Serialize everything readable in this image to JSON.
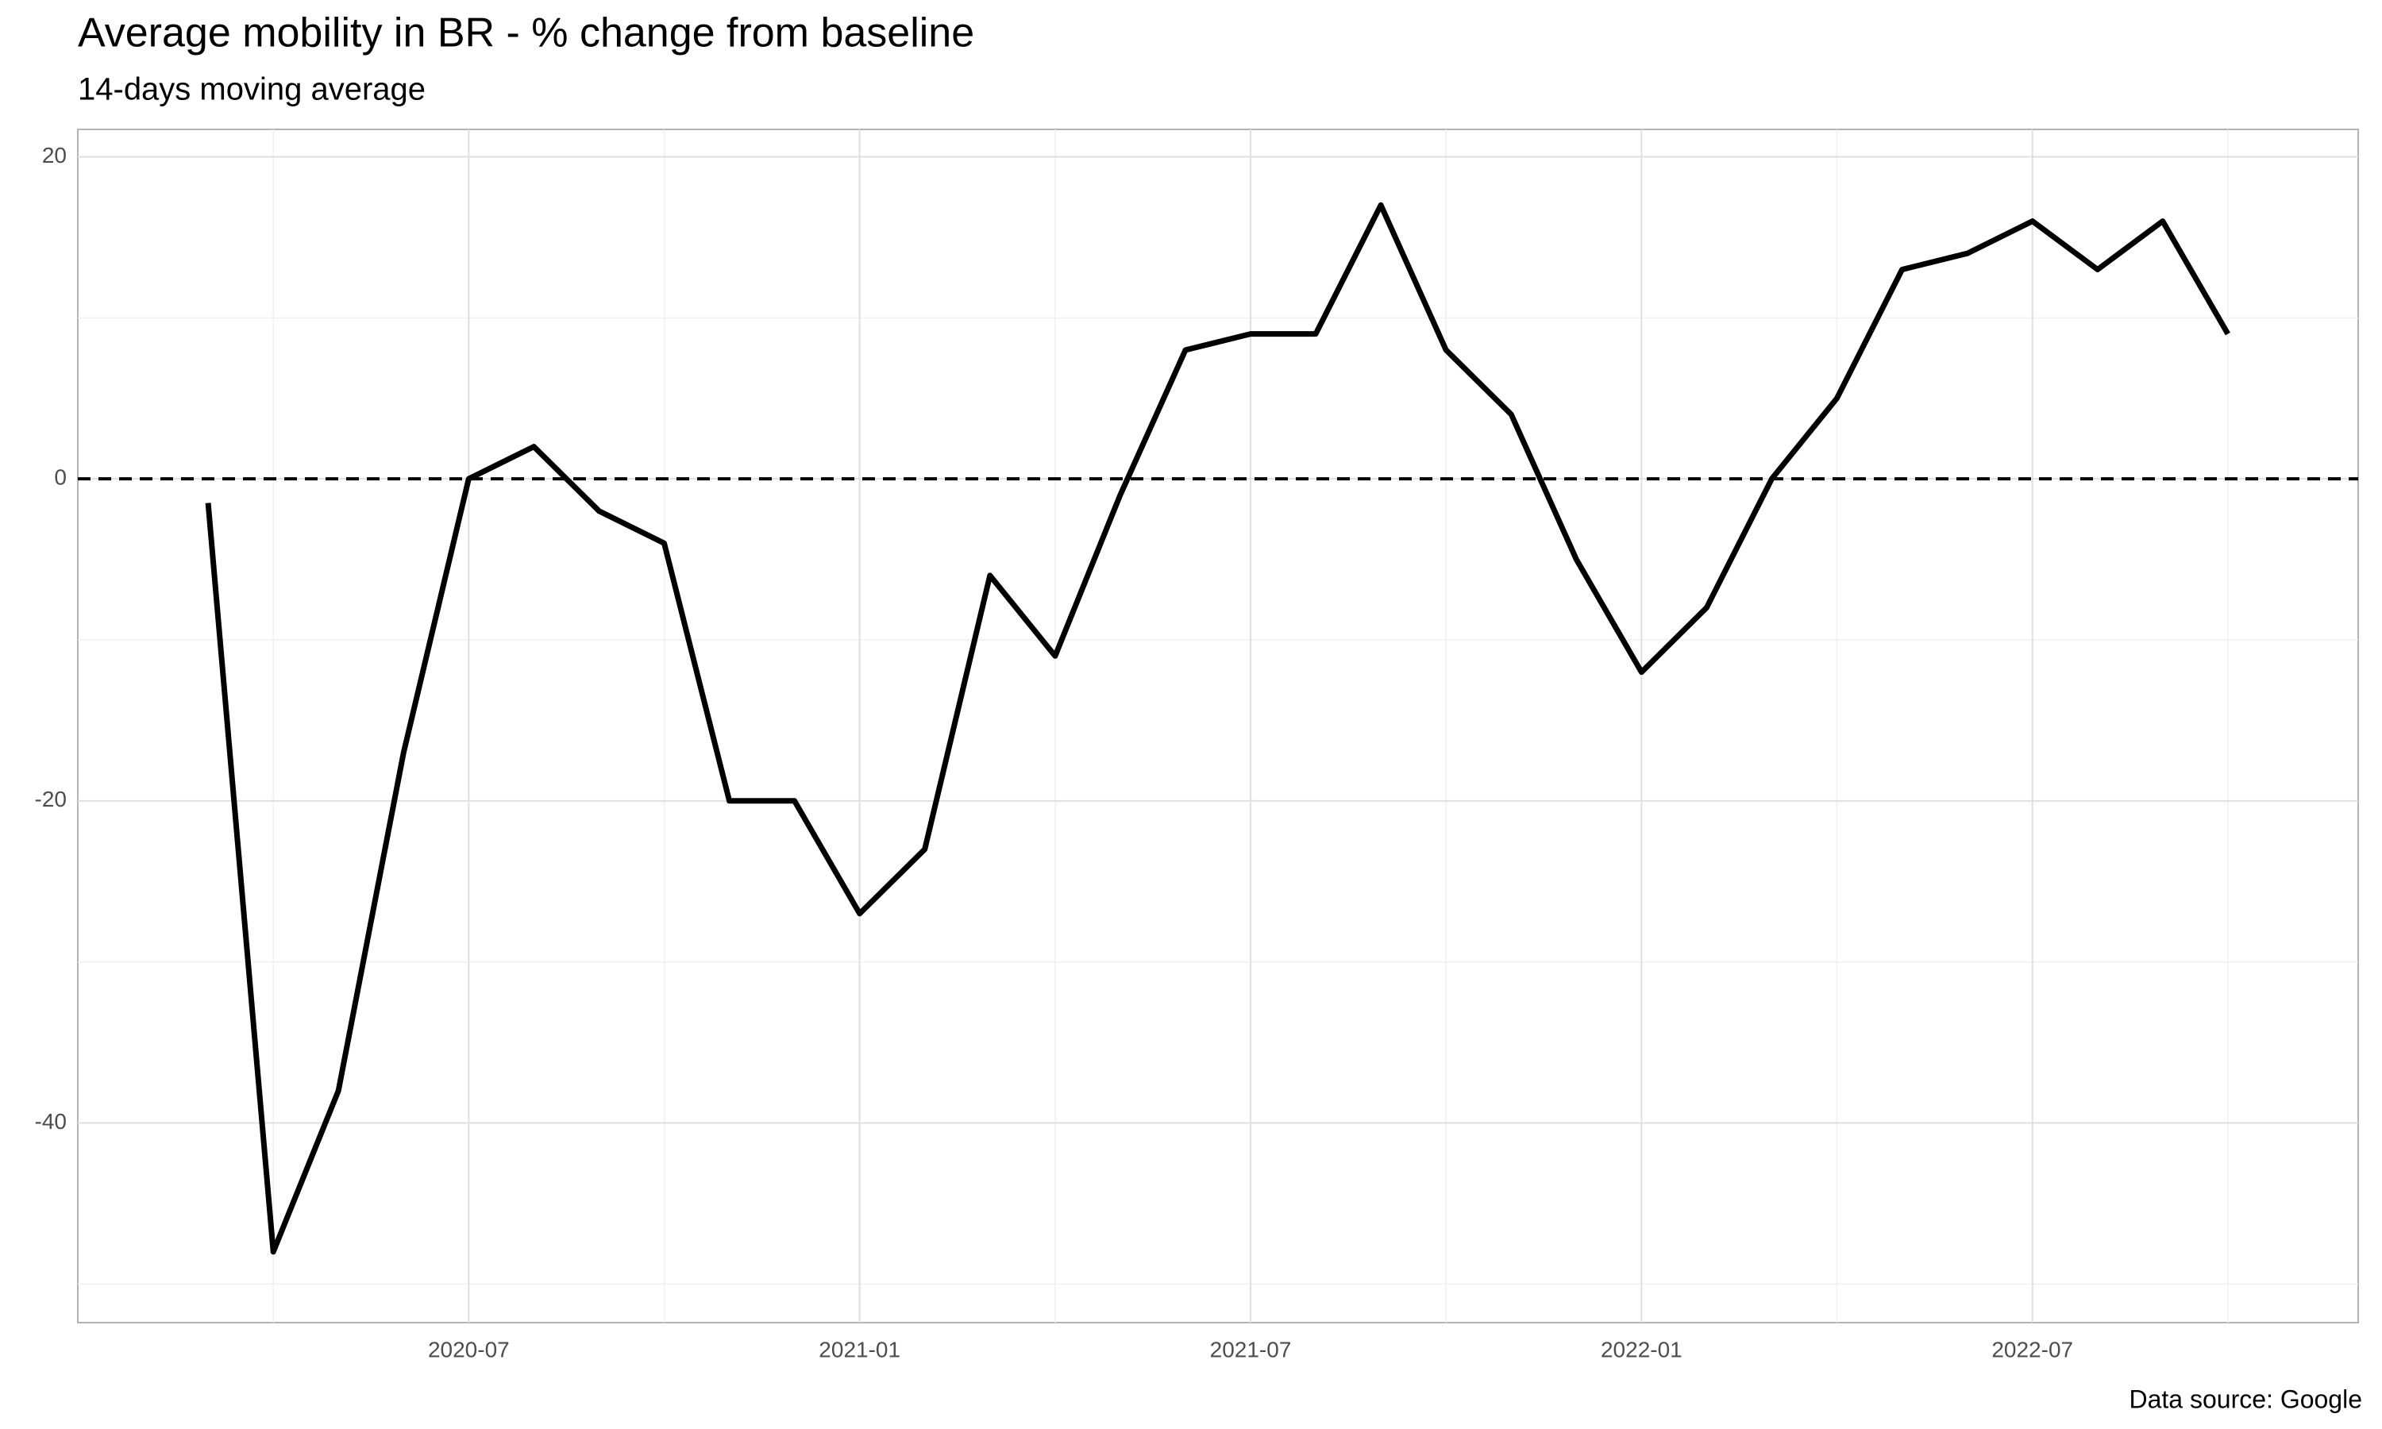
{
  "chart_data": {
    "type": "line",
    "title": "Average mobility in BR - % change from baseline",
    "subtitle": "14-days moving average",
    "caption": "Data source: Google",
    "x": [
      "2020-03",
      "2020-04",
      "2020-05",
      "2020-06",
      "2020-07",
      "2020-08",
      "2020-09",
      "2020-10",
      "2020-11",
      "2020-12",
      "2021-01",
      "2021-02",
      "2021-03",
      "2021-04",
      "2021-05",
      "2021-06",
      "2021-07",
      "2021-08",
      "2021-09",
      "2021-10",
      "2021-11",
      "2021-12",
      "2022-01",
      "2022-02",
      "2022-03",
      "2022-04",
      "2022-05",
      "2022-06",
      "2022-07",
      "2022-08",
      "2022-09",
      "2022-10"
    ],
    "values": [
      -1.5,
      -48,
      -38,
      -17,
      0,
      2,
      -2,
      -4,
      -20,
      -20,
      -27,
      -23,
      -6,
      -11,
      -1,
      8,
      9,
      9,
      17,
      8,
      4,
      -5,
      -12,
      -8,
      0,
      5,
      13,
      14,
      16,
      13,
      16,
      9
    ],
    "color": "#000000",
    "hline": 0,
    "xlim": [
      "2020-01",
      "2022-12"
    ],
    "xticks": [
      "2020-07",
      "2021-01",
      "2021-07",
      "2022-01",
      "2022-07"
    ],
    "ylim": [
      -52.4,
      21.7
    ],
    "yticks": [
      -40,
      -20,
      0,
      20
    ],
    "grid": true
  }
}
